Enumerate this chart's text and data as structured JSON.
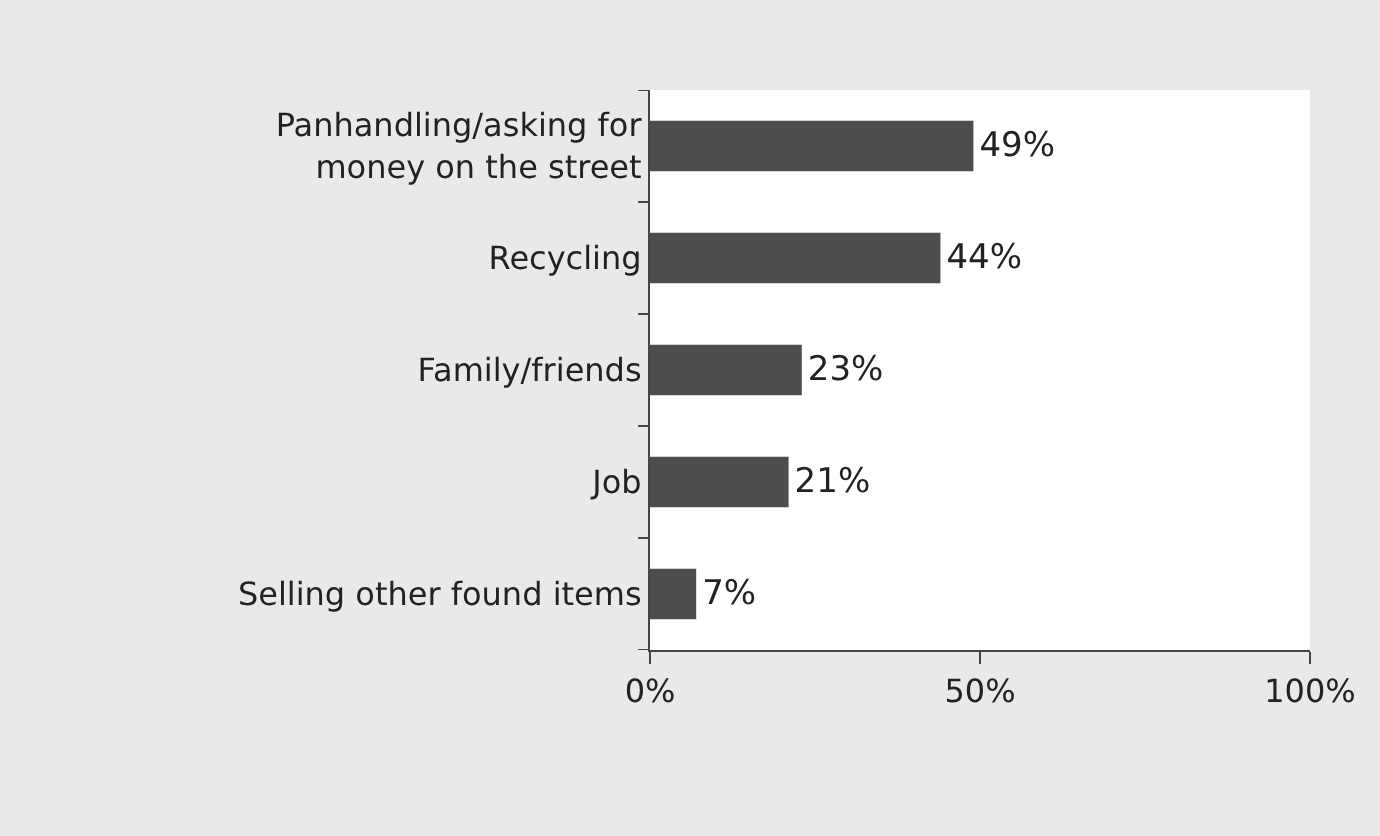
{
  "chart_data": {
    "type": "bar",
    "orientation": "horizontal",
    "categories": [
      "Panhandling/asking for money on the street",
      "Recycling",
      "Family/friends",
      "Job",
      "Selling other found items"
    ],
    "values": [
      49,
      44,
      23,
      21,
      7
    ],
    "value_labels": [
      "49%",
      "44%",
      "23%",
      "21%",
      "7%"
    ],
    "color": "#4d4d4d",
    "xlim": [
      0,
      100
    ],
    "xticks": [
      {
        "value": 0,
        "label": "0%"
      },
      {
        "value": 50,
        "label": "50%"
      },
      {
        "value": 100,
        "label": "100%"
      }
    ],
    "grid": false
  }
}
